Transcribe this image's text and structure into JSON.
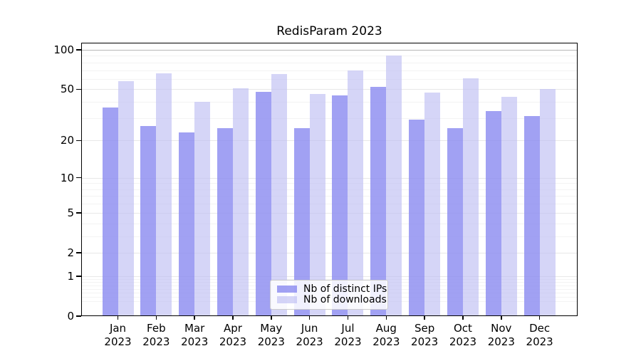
{
  "chart_data": {
    "type": "bar",
    "title": "RedisParam 2023",
    "categories": [
      "Jan",
      "Feb",
      "Mar",
      "Apr",
      "May",
      "Jun",
      "Jul",
      "Aug",
      "Sep",
      "Oct",
      "Nov",
      "Dec"
    ],
    "category_year": "2023",
    "series": [
      {
        "name": "Nb of distinct IPs",
        "color": "rgba(138,138,240,0.8)",
        "values": [
          36,
          26,
          23,
          25,
          48,
          25,
          45,
          52,
          29,
          25,
          34,
          31
        ]
      },
      {
        "name": "Nb of downloads",
        "color": "rgba(189,189,243,0.63)",
        "values": [
          58,
          66,
          40,
          51,
          65,
          46,
          70,
          91,
          47,
          61,
          44,
          50
        ]
      }
    ],
    "yscale": "log1p",
    "yticks": [
      0,
      1,
      2,
      5,
      10,
      20,
      50,
      100
    ],
    "ytick_labels": [
      "0",
      "1",
      "2",
      "5",
      "10",
      "20",
      "50",
      "100"
    ],
    "minor_gridlines": [
      0.3,
      0.4,
      0.5,
      0.6,
      0.7,
      0.8,
      0.9,
      3,
      4,
      6,
      7,
      8,
      9,
      30,
      40,
      60,
      70,
      80,
      90
    ],
    "ylim": [
      0,
      113
    ],
    "grid": true,
    "legend_position": "lower center"
  },
  "colors": {
    "background": "#ffffff",
    "spine": "#000000",
    "grid_major": "#e8e8e8",
    "grid_minor": "#f3f3f3",
    "grid_top": "#b8b8b8",
    "bar_distinct_ips": "rgba(138,138,240,0.8)",
    "bar_downloads": "rgba(189,189,243,0.63)",
    "legend_border": "#cccccc",
    "text": "#000000"
  }
}
